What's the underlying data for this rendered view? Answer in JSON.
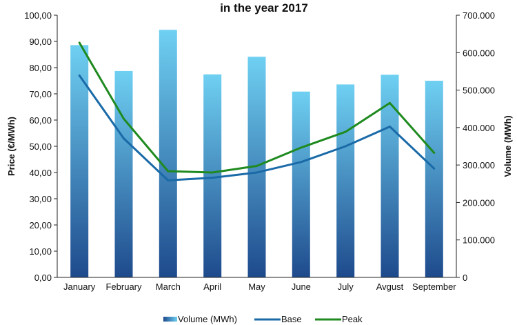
{
  "chart_data": {
    "type": "bar",
    "title": "in the year 2017",
    "categories": [
      "January",
      "February",
      "March",
      "April",
      "May",
      "June",
      "July",
      "Avgust",
      "September"
    ],
    "series": [
      {
        "name": "Volume (MWh)",
        "type": "bar",
        "axis": "right",
        "values": [
          620000,
          551000,
          661000,
          542000,
          589000,
          496000,
          515000,
          541000,
          525000
        ]
      },
      {
        "name": "Base",
        "type": "line",
        "axis": "left",
        "values": [
          77.0,
          53.0,
          37.0,
          38.0,
          40.0,
          44.0,
          50.0,
          57.5,
          41.5
        ]
      },
      {
        "name": "Peak",
        "type": "line",
        "axis": "left",
        "values": [
          89.5,
          60.5,
          40.5,
          40.0,
          42.5,
          49.5,
          55.5,
          66.5,
          47.5
        ]
      }
    ],
    "ylabel": "Price (€/MWh)",
    "y2label": "Volume (MWh)",
    "ylim": [
      0,
      100
    ],
    "y2lim": [
      0,
      700000
    ],
    "yticks": [
      "0,00",
      "10,00",
      "20,00",
      "30,00",
      "40,00",
      "50,00",
      "60,00",
      "70,00",
      "80,00",
      "90,00",
      "100,00"
    ],
    "y2ticks": [
      "0",
      "100.000",
      "200.000",
      "300.000",
      "400.000",
      "500.000",
      "600.000",
      "700.000"
    ],
    "grid": false,
    "legend_position": "bottom",
    "colors": {
      "bar_top": "#6fd0f2",
      "bar_bottom": "#1e4a8c",
      "Base": "#1a6aa8",
      "Peak": "#1f8a1f",
      "axis": "#222222"
    }
  }
}
